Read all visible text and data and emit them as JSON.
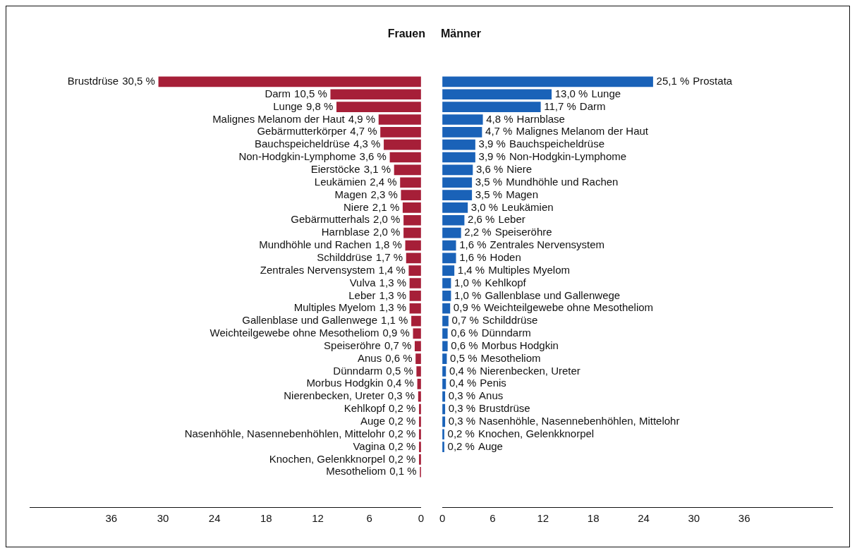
{
  "chart_data": [
    {
      "type": "bar",
      "orientation": "horizontal",
      "title": "Frauen",
      "color": "#a61f38",
      "categories": [
        "Brustdrüse",
        "Darm",
        "Lunge",
        "Malignes Melanom der Haut",
        "Gebärmutterkörper",
        "Bauchspeicheldrüse",
        "Non-Hodgkin-Lymphome",
        "Eierstöcke",
        "Leukämien",
        "Magen",
        "Niere",
        "Gebärmutterhals",
        "Harnblase",
        "Mundhöhle und Rachen",
        "Schilddrüse",
        "Zentrales Nervensystem",
        "Vulva",
        "Leber",
        "Multiples Myelom",
        "Gallenblase und Gallenwege",
        "Weichteilgewebe ohne Mesotheliom",
        "Speiseröhre",
        "Anus",
        "Dünndarm",
        "Morbus Hodgkin",
        "Nierenbecken, Ureter",
        "Kehlkopf",
        "Auge",
        "Nasenhöhle, Nasennebenhöhlen, Mittelohr",
        "Vagina",
        "Knochen, Gelenkknorpel",
        "Mesotheliom"
      ],
      "values": [
        30.5,
        10.5,
        9.8,
        4.9,
        4.7,
        4.3,
        3.6,
        3.1,
        2.4,
        2.3,
        2.1,
        2.0,
        2.0,
        1.8,
        1.7,
        1.4,
        1.3,
        1.3,
        1.3,
        1.1,
        0.9,
        0.7,
        0.6,
        0.5,
        0.4,
        0.3,
        0.2,
        0.2,
        0.2,
        0.2,
        0.2,
        0.1
      ],
      "value_labels": [
        "30,5 %",
        "10,5 %",
        "9,8 %",
        "4,9 %",
        "4,7 %",
        "4,3 %",
        "3,6 %",
        "3,1 %",
        "2,4 %",
        "2,3 %",
        "2,1 %",
        "2,0 %",
        "2,0 %",
        "1,8 %",
        "1,7 %",
        "1,4 %",
        "1,3 %",
        "1,3 %",
        "1,3 %",
        "1,1 %",
        "0,9 %",
        "0,7 %",
        "0,6 %",
        "0,5 %",
        "0,4 %",
        "0,3 %",
        "0,2 %",
        "0,2 %",
        "0,2 %",
        "0,2 %",
        "0,2 %",
        "0,1 %"
      ],
      "xlim": [
        45.5,
        0
      ],
      "xticks": [
        36,
        30,
        24,
        18,
        12,
        6,
        0
      ],
      "grid": false
    },
    {
      "type": "bar",
      "orientation": "horizontal",
      "title": "Männer",
      "color": "#1a62b8",
      "categories": [
        "Prostata",
        "Lunge",
        "Darm",
        "Harnblase",
        "Malignes Melanom der Haut",
        "Bauchspeicheldrüse",
        "Non-Hodgkin-Lymphome",
        "Niere",
        "Mundhöhle und Rachen",
        "Magen",
        "Leukämien",
        "Leber",
        "Speiseröhre",
        "Zentrales Nervensystem",
        "Hoden",
        "Multiples Myelom",
        "Kehlkopf",
        "Gallenblase und Gallenwege",
        "Weichteilgewebe ohne Mesotheliom",
        "Schilddrüse",
        "Dünndarm",
        "Morbus Hodgkin",
        "Mesotheliom",
        "Nierenbecken, Ureter",
        "Penis",
        "Anus",
        "Brustdrüse",
        "Nasenhöhle, Nasennebenhöhlen, Mittelohr",
        "Knochen, Gelenkknorpel",
        "Auge"
      ],
      "values": [
        25.1,
        13.0,
        11.7,
        4.8,
        4.7,
        3.9,
        3.9,
        3.6,
        3.5,
        3.5,
        3.0,
        2.6,
        2.2,
        1.6,
        1.6,
        1.4,
        1.0,
        1.0,
        0.9,
        0.7,
        0.6,
        0.6,
        0.5,
        0.4,
        0.4,
        0.3,
        0.3,
        0.3,
        0.2,
        0.2
      ],
      "value_labels": [
        "25,1 %",
        "13,0 %",
        "11,7 %",
        "4,8 %",
        "4,7 %",
        "3,9 %",
        "3,9 %",
        "3,6 %",
        "3,5 %",
        "3,5 %",
        "3,0 %",
        "2,6 %",
        "2,2 %",
        "1,6 %",
        "1,6 %",
        "1,4 %",
        "1,0 %",
        "1,0 %",
        "0,9 %",
        "0,7 %",
        "0,6 %",
        "0,6 %",
        "0,5 %",
        "0,4 %",
        "0,4 %",
        "0,3 %",
        "0,3 %",
        "0,3 %",
        "0,2 %",
        "0,2 %"
      ],
      "xlim": [
        0,
        46.5
      ],
      "xticks": [
        0,
        6,
        12,
        18,
        24,
        30,
        36
      ],
      "grid": false
    }
  ]
}
